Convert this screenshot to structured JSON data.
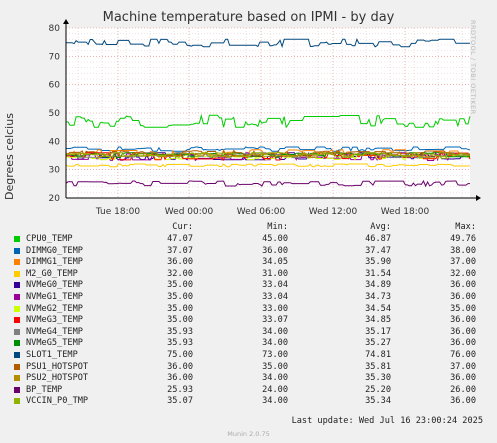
{
  "chart_data": {
    "type": "line",
    "title": "Machine temperature based on IPMI - by day",
    "ylabel": "Degrees celcius",
    "ylim": [
      20,
      80
    ],
    "yticks": [
      20,
      30,
      40,
      50,
      60,
      70,
      80
    ],
    "xtick_labels": [
      "Tue 18:00",
      "Wed 00:00",
      "Wed 06:00",
      "Wed 12:00",
      "Wed 18:00"
    ],
    "grid": true,
    "series": [
      {
        "name": "CPU0_TEMP",
        "color": "#00cc00",
        "cur": "47.07",
        "min": "45.00",
        "avg": "46.87",
        "max": "49.76"
      },
      {
        "name": "DIMMG0_TEMP",
        "color": "#0066b3",
        "cur": "37.07",
        "min": "36.00",
        "avg": "37.47",
        "max": "38.00"
      },
      {
        "name": "DIMMG1_TEMP",
        "color": "#ff8000",
        "cur": "36.00",
        "min": "34.05",
        "avg": "35.90",
        "max": "37.00"
      },
      {
        "name": "M2_G0_TEMP",
        "color": "#ffcc00",
        "cur": "32.00",
        "min": "31.00",
        "avg": "31.54",
        "max": "32.00"
      },
      {
        "name": "NVMeG0_TEMP",
        "color": "#330099",
        "cur": "35.00",
        "min": "33.04",
        "avg": "34.89",
        "max": "36.00"
      },
      {
        "name": "NVMeG1_TEMP",
        "color": "#990099",
        "cur": "35.00",
        "min": "33.04",
        "avg": "34.73",
        "max": "36.00"
      },
      {
        "name": "NVMeG2_TEMP",
        "color": "#ccff00",
        "cur": "35.00",
        "min": "33.00",
        "avg": "34.54",
        "max": "35.00"
      },
      {
        "name": "NVMeG3_TEMP",
        "color": "#ff0000",
        "cur": "35.00",
        "min": "33.07",
        "avg": "34.85",
        "max": "36.00"
      },
      {
        "name": "NVMeG4_TEMP",
        "color": "#808080",
        "cur": "35.93",
        "min": "34.00",
        "avg": "35.17",
        "max": "36.00"
      },
      {
        "name": "NVMeG5_TEMP",
        "color": "#008f00",
        "cur": "35.93",
        "min": "34.00",
        "avg": "35.27",
        "max": "36.00"
      },
      {
        "name": "SLOT1_TEMP",
        "color": "#00487d",
        "cur": "75.00",
        "min": "73.00",
        "avg": "74.81",
        "max": "76.00"
      },
      {
        "name": "PSU1_HOTSPOT",
        "color": "#b35a00",
        "cur": "36.00",
        "min": "35.00",
        "avg": "35.81",
        "max": "37.00"
      },
      {
        "name": "PSU2_HOTSPOT",
        "color": "#b38f00",
        "cur": "36.00",
        "min": "34.00",
        "avg": "35.30",
        "max": "36.00"
      },
      {
        "name": "BP_TEMP",
        "color": "#6b006b",
        "cur": "25.93",
        "min": "24.00",
        "avg": "25.20",
        "max": "26.00"
      },
      {
        "name": "VCCIN_P0_TMP",
        "color": "#8fb300",
        "cur": "35.07",
        "min": "34.00",
        "avg": "35.34",
        "max": "36.00"
      }
    ]
  },
  "legend_headers": {
    "cur": "Cur:",
    "min": "Min:",
    "avg": "Avg:",
    "max": "Max:"
  },
  "last_update": "Last update:  Wed Jul 16 23:00:24 2025",
  "footer": "Munin 2.0.75",
  "watermark": "RRDTOOL / TOBI OETIKER"
}
